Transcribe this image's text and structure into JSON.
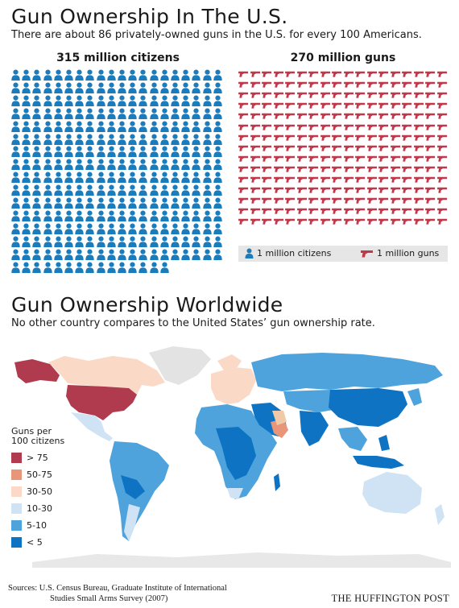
{
  "header": {
    "title": "Gun Ownership In The U.S.",
    "subtitle": "There are about 86 privately-owned guns in the U.S. for every 100 Americans."
  },
  "pictograph": {
    "citizens_heading": "315 million citizens",
    "guns_heading": "270 million guns",
    "citizens_count": 315,
    "guns_count": 270,
    "citizen_color": "#1a7bbd",
    "gun_color": "#c0394b",
    "legend": {
      "citizen_label": "1 million citizens",
      "gun_label": "1 million guns"
    }
  },
  "worldwide": {
    "title": "Gun Ownership Worldwide",
    "subtitle": "No other country compares to the United States’ gun ownership rate."
  },
  "map_key": {
    "title_line1": "Guns per",
    "title_line2": "100 citizens",
    "items": [
      {
        "label": "> 75",
        "color": "#b03a4e"
      },
      {
        "label": "50-75",
        "color": "#e8957a"
      },
      {
        "label": "30-50",
        "color": "#fbd9c7"
      },
      {
        "label": "10-30",
        "color": "#cfe3f5"
      },
      {
        "label": "5-10",
        "color": "#4fa3dc"
      },
      {
        "label": "< 5",
        "color": "#0e73c2"
      }
    ]
  },
  "footer": {
    "sources_line1": "Sources: U.S. Census Bureau, Graduate Institute of International",
    "sources_line2": "Studies Small Arms Survey (2007)",
    "brand": "THE HUFFINGTON POST"
  }
}
